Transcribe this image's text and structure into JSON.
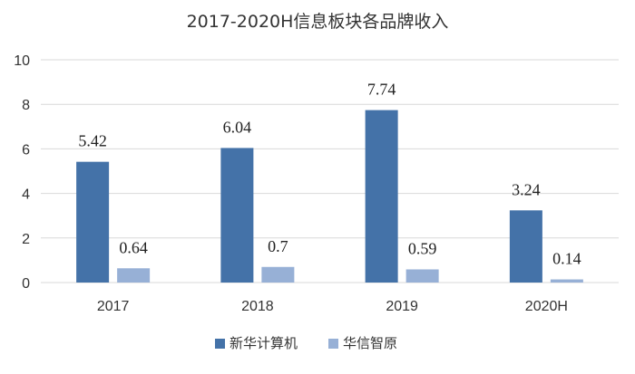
{
  "chart_data": {
    "type": "bar",
    "title": "2017-2020H信息板块各品牌收入",
    "xlabel": "",
    "ylabel": "",
    "categories": [
      "2017",
      "2018",
      "2019",
      "2020H"
    ],
    "series": [
      {
        "name": "新华计算机",
        "values": [
          5.42,
          6.04,
          7.74,
          3.24
        ],
        "color": "#4472a8"
      },
      {
        "name": "华信智原",
        "values": [
          0.64,
          0.7,
          0.59,
          0.14
        ],
        "color": "#97b0d6"
      }
    ],
    "data_labels": [
      [
        "5.42",
        "6.04",
        "7.74",
        "3.24"
      ],
      [
        "0.64",
        "0.7",
        "0.59",
        "0.14"
      ]
    ],
    "ylim": [
      0,
      10
    ],
    "yticks": [
      "0",
      "2",
      "4",
      "6",
      "8",
      "10"
    ],
    "grid": true,
    "legend_position": "bottom"
  }
}
